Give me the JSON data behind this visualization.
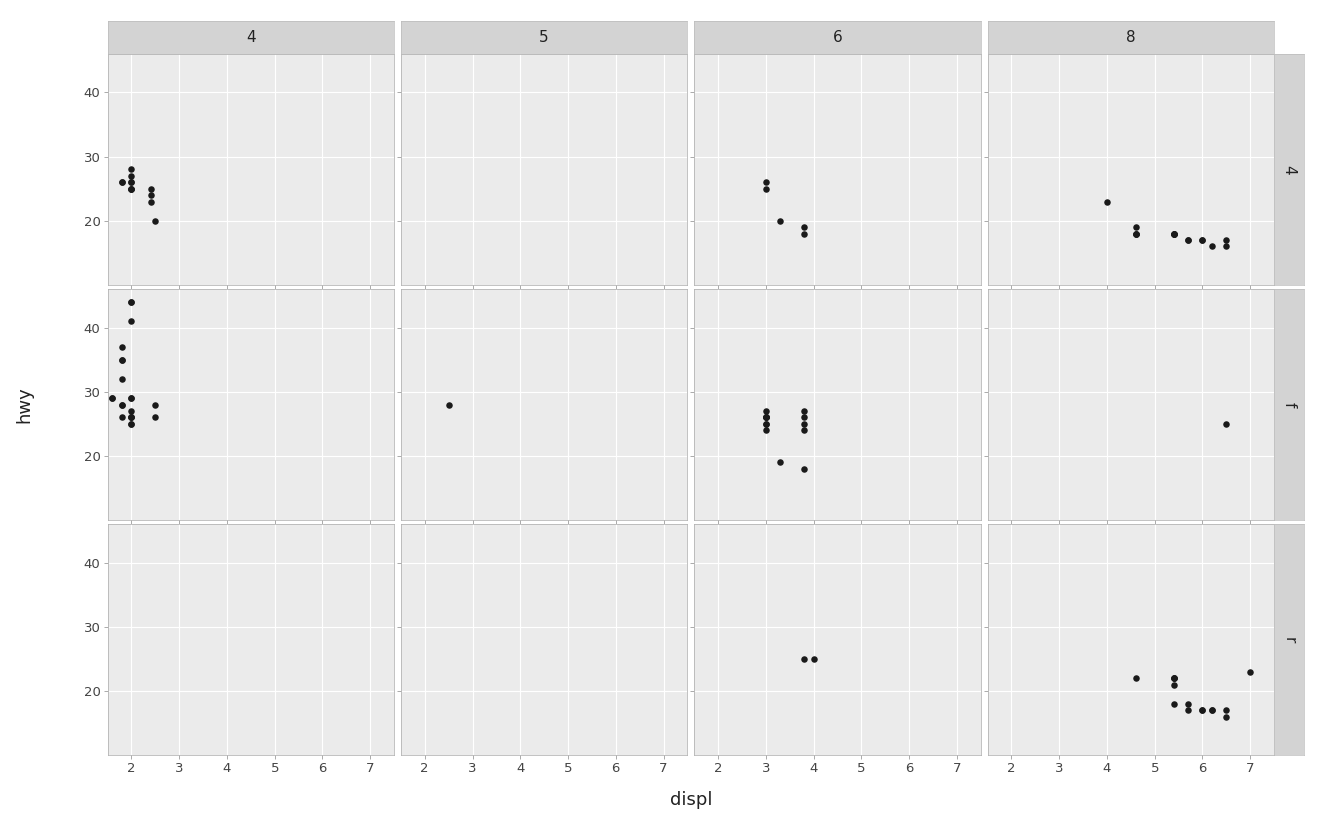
{
  "xlabel": "displ",
  "ylabel": "hwy",
  "col_labels": [
    "4",
    "5",
    "6",
    "8"
  ],
  "row_labels": [
    "4",
    "f",
    "r"
  ],
  "xlim": [
    1.5,
    7.5
  ],
  "ylim": [
    10,
    46
  ],
  "xticks": [
    2,
    3,
    4,
    5,
    6,
    7
  ],
  "yticks": [
    20,
    30,
    40
  ],
  "bg_color": "#EBEBEB",
  "strip_bg": "#D3D3D3",
  "figure_bg": "#FFFFFF",
  "grid_color": "#FFFFFF",
  "dot_color": "#1A1A1A",
  "dot_size": 22,
  "tick_label_fontsize": 9.5,
  "axis_label_fontsize": 13,
  "strip_fontsize": 11,
  "facet_data": {
    "4_4": {
      "displ": [
        1.8,
        1.8,
        2.0,
        2.0,
        2.0,
        2.0,
        2.0,
        2.0,
        2.0,
        2.4,
        2.4,
        2.4,
        2.5
      ],
      "hwy": [
        26,
        26,
        28,
        26,
        26,
        27,
        25,
        25,
        25,
        24,
        25,
        23,
        20
      ]
    },
    "4_5": {
      "displ": [],
      "hwy": []
    },
    "4_6": {
      "displ": [
        3.0,
        3.0,
        3.3,
        3.8,
        3.8
      ],
      "hwy": [
        26,
        25,
        20,
        19,
        18
      ]
    },
    "4_8": {
      "displ": [
        4.0,
        4.6,
        4.6,
        4.6,
        4.6,
        5.4,
        5.4,
        5.4,
        5.4,
        5.7,
        5.7,
        6.0,
        6.0,
        6.2,
        6.5,
        6.5
      ],
      "hwy": [
        23,
        19,
        18,
        18,
        18,
        18,
        18,
        18,
        18,
        17,
        17,
        17,
        17,
        16,
        17,
        16
      ]
    },
    "f_4": {
      "displ": [
        1.6,
        1.6,
        1.8,
        1.8,
        1.8,
        1.8,
        1.8,
        1.8,
        1.8,
        2.0,
        2.0,
        2.0,
        2.0,
        2.0,
        2.0,
        2.0,
        2.0,
        2.0,
        2.0,
        2.0,
        2.5,
        2.5
      ],
      "hwy": [
        29,
        29,
        35,
        35,
        32,
        37,
        28,
        28,
        26,
        29,
        27,
        26,
        26,
        26,
        25,
        25,
        44,
        44,
        41,
        29,
        28,
        26
      ]
    },
    "f_5": {
      "displ": [
        2.5
      ],
      "hwy": [
        28
      ]
    },
    "f_6": {
      "displ": [
        3.0,
        3.0,
        3.0,
        3.0,
        3.0,
        3.0,
        3.0,
        3.0,
        3.3,
        3.8,
        3.8,
        3.8,
        3.8,
        3.8
      ],
      "hwy": [
        26,
        26,
        27,
        26,
        26,
        25,
        25,
        24,
        19,
        26,
        25,
        24,
        27,
        18
      ]
    },
    "f_8": {
      "displ": [
        6.5
      ],
      "hwy": [
        25
      ]
    },
    "r_4": {
      "displ": [],
      "hwy": []
    },
    "r_5": {
      "displ": [],
      "hwy": []
    },
    "r_6": {
      "displ": [
        3.8,
        4.0
      ],
      "hwy": [
        25,
        25
      ]
    },
    "r_8": {
      "displ": [
        4.6,
        5.4,
        5.4,
        5.4,
        5.4,
        5.4,
        5.7,
        5.7,
        6.0,
        6.0,
        6.2,
        6.2,
        6.5,
        6.5,
        7.0
      ],
      "hwy": [
        22,
        22,
        22,
        22,
        21,
        18,
        18,
        17,
        17,
        17,
        17,
        17,
        17,
        16,
        23
      ]
    }
  }
}
